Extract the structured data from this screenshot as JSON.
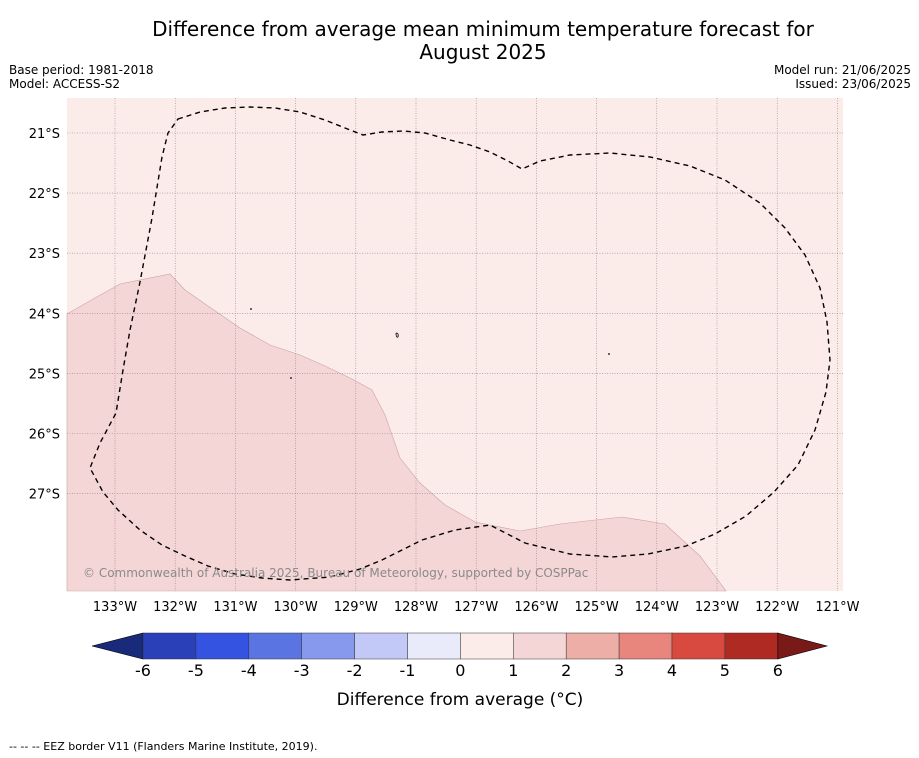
{
  "title_line1": "Difference from average mean minimum temperature forecast for",
  "title_line2": "August 2025",
  "base_period": "Base period: 1981-2018",
  "model": "Model: ACCESS-S2",
  "model_run": "Model run: 21/06/2025",
  "issued": "Issued: 23/06/2025",
  "copyright": "© Commonwealth of Australia 2025, Bureau of Meteorology, supported by COSPPac",
  "lat_labels": [
    "21°S",
    "22°S",
    "23°S",
    "24°S",
    "25°S",
    "26°S",
    "27°S"
  ],
  "lon_labels": [
    "133°W",
    "132°W",
    "131°W",
    "130°W",
    "129°W",
    "128°W",
    "127°W",
    "126°W",
    "125°W",
    "124°W",
    "123°W",
    "122°W",
    "121°W"
  ],
  "colorbar": {
    "title": "Difference from average (°C)",
    "ticks": [
      "-6",
      "-5",
      "-4",
      "-3",
      "-2",
      "-1",
      "0",
      "1",
      "2",
      "3",
      "4",
      "5",
      "6"
    ],
    "colors": [
      "#1a2a7a",
      "#2a40b8",
      "#3353e0",
      "#5a74e2",
      "#8799ec",
      "#c2c9f6",
      "#e9ebfb",
      "#fbecea",
      "#f5d6d6",
      "#eeaea8",
      "#e8857d",
      "#d84a40",
      "#b02a24",
      "#7a1a18"
    ]
  },
  "map": {
    "background_color": "#fbecea",
    "anomaly_region_color": "#f5d6d6",
    "anomaly_region_class": "1 to 2 °C"
  },
  "footer": "-- -- -- EEZ border V11 (Flanders Marine Institute, 2019)."
}
